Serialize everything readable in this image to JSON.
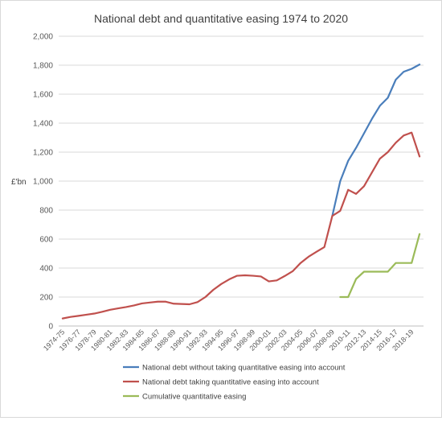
{
  "chart_data": {
    "type": "line",
    "title": "National debt and quantitative easing 1974 to 2020",
    "ylabel": "£'bn",
    "xlabel": "",
    "ylim": [
      0,
      2000
    ],
    "yticks": [
      0,
      200,
      400,
      600,
      800,
      1000,
      1200,
      1400,
      1600,
      1800,
      2000
    ],
    "ytick_labels": [
      "0",
      "200",
      "400",
      "600",
      "800",
      "1,000",
      "1,200",
      "1,400",
      "1,600",
      "1,800",
      "2,000"
    ],
    "categories": [
      "1974-75",
      "1975-76",
      "1976-77",
      "1977-78",
      "1978-79",
      "1979-80",
      "1980-81",
      "1981-82",
      "1982-83",
      "1983-84",
      "1984-85",
      "1985-86",
      "1986-87",
      "1987-88",
      "1988-89",
      "1989-90",
      "1990-91",
      "1991-92",
      "1992-93",
      "1993-94",
      "1994-95",
      "1995-96",
      "1996-97",
      "1997-98",
      "1998-99",
      "1999-00",
      "2000-01",
      "2001-02",
      "2002-03",
      "2003-04",
      "2004-05",
      "2005-06",
      "2006-07",
      "2007-08",
      "2008-09",
      "2009-10",
      "2010-11",
      "2011-12",
      "2012-13",
      "2013-14",
      "2014-15",
      "2015-16",
      "2016-17",
      "2017-18",
      "2018-19",
      "2019-20"
    ],
    "xtick_labels": [
      "1974-75",
      "1976-77",
      "1978-79",
      "1980-81",
      "1982-83",
      "1984-85",
      "1986-87",
      "1988-89",
      "1990-91",
      "1992-93",
      "1994-95",
      "1996-97",
      "1998-99",
      "2000-01",
      "2002-03",
      "2004-05",
      "2006-07",
      "2008-09",
      "2010-11",
      "2012-13",
      "2014-15",
      "2016-17",
      "2018-19"
    ],
    "grid": "horizontal",
    "legend_position": "bottom",
    "series": [
      {
        "name": "National debt without taking quantitative easing into account",
        "color": "#4a7ebb",
        "values": [
          null,
          null,
          null,
          null,
          null,
          null,
          null,
          null,
          null,
          null,
          null,
          null,
          null,
          null,
          null,
          null,
          null,
          null,
          null,
          null,
          null,
          null,
          null,
          null,
          null,
          null,
          null,
          null,
          null,
          null,
          null,
          null,
          null,
          null,
          760,
          1000,
          1140,
          1230,
          1330,
          1430,
          1520,
          1575,
          1700,
          1755,
          1775,
          1805
        ]
      },
      {
        "name": "National debt taking quantitative easing into account",
        "color": "#c0504d",
        "values": [
          52,
          63,
          70,
          78,
          86,
          98,
          112,
          122,
          131,
          142,
          156,
          162,
          168,
          168,
          154,
          152,
          150,
          165,
          200,
          250,
          290,
          322,
          347,
          350,
          347,
          342,
          308,
          315,
          345,
          378,
          435,
          478,
          512,
          545,
          760,
          795,
          940,
          912,
          965,
          1060,
          1155,
          1200,
          1265,
          1315,
          1335,
          1170
        ]
      },
      {
        "name": "Cumulative quantitative easing",
        "color": "#9bbb59",
        "values": [
          null,
          null,
          null,
          null,
          null,
          null,
          null,
          null,
          null,
          null,
          null,
          null,
          null,
          null,
          null,
          null,
          null,
          null,
          null,
          null,
          null,
          null,
          null,
          null,
          null,
          null,
          null,
          null,
          null,
          null,
          null,
          null,
          null,
          null,
          null,
          200,
          200,
          325,
          375,
          375,
          375,
          375,
          435,
          435,
          435,
          635
        ]
      }
    ]
  }
}
